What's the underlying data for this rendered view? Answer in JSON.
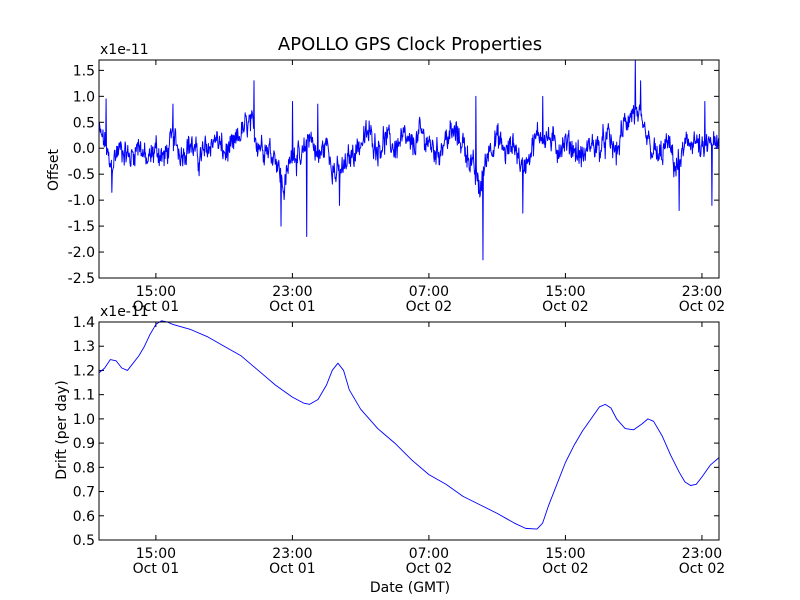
{
  "chart_data": [
    {
      "type": "line",
      "title": "APOLLO GPS Clock Properties",
      "xlabel": "",
      "ylabel": "Offset",
      "y_scale_label": "x1e-11",
      "xlim": [
        "Oct 01 11:40",
        "Oct 03 00:00"
      ],
      "ylim": [
        -2.5,
        1.7
      ],
      "xtick_labels": [
        {
          "time": "15:00",
          "date": "Oct 01"
        },
        {
          "time": "23:00",
          "date": "Oct 01"
        },
        {
          "time": "07:00",
          "date": "Oct 02"
        },
        {
          "time": "15:00",
          "date": "Oct 02"
        },
        {
          "time": "23:00",
          "date": "Oct 02"
        }
      ],
      "ytick_labels": [
        "-2.5",
        "-2.0",
        "-1.5",
        "-1.0",
        "-0.5",
        "0.0",
        "0.5",
        "1.0",
        "1.5"
      ],
      "grid": false,
      "color": "#0000ff",
      "series": [
        {
          "points": [
            [
              "Oct 01 11:40",
              0.3
            ],
            [
              "Oct 01 12:00",
              0.1
            ],
            [
              "Oct 01 12:20",
              -0.4
            ],
            [
              "Oct 01 12:40",
              -0.1
            ],
            [
              "Oct 01 13:00",
              0.0
            ],
            [
              "Oct 01 13:30",
              -0.2
            ],
            [
              "Oct 01 14:00",
              0.1
            ],
            [
              "Oct 01 14:30",
              -0.3
            ],
            [
              "Oct 01 15:00",
              0.0
            ],
            [
              "Oct 01 15:30",
              -0.2
            ],
            [
              "Oct 01 16:00",
              0.2
            ],
            [
              "Oct 01 16:30",
              -0.1
            ],
            [
              "Oct 01 17:00",
              0.1
            ],
            [
              "Oct 01 17:30",
              -0.2
            ],
            [
              "Oct 01 18:00",
              0.0
            ],
            [
              "Oct 01 18:30",
              0.2
            ],
            [
              "Oct 01 19:00",
              -0.1
            ],
            [
              "Oct 01 19:30",
              0.0
            ],
            [
              "Oct 01 20:00",
              0.3
            ],
            [
              "Oct 01 20:30",
              0.5
            ],
            [
              "Oct 01 21:00",
              0.1
            ],
            [
              "Oct 01 21:30",
              0.0
            ],
            [
              "Oct 01 22:00",
              -0.1
            ],
            [
              "Oct 01 22:30",
              -0.8
            ],
            [
              "Oct 01 23:00",
              0.0
            ],
            [
              "Oct 01 23:30",
              -0.3
            ],
            [
              "Oct 02 00:00",
              0.3
            ],
            [
              "Oct 02 00:30",
              -0.2
            ],
            [
              "Oct 02 01:00",
              0.1
            ],
            [
              "Oct 02 01:30",
              -0.5
            ],
            [
              "Oct 02 02:00",
              -0.4
            ],
            [
              "Oct 02 02:30",
              -0.1
            ],
            [
              "Oct 02 03:00",
              0.1
            ],
            [
              "Oct 02 03:30",
              0.3
            ],
            [
              "Oct 02 04:00",
              0.0
            ],
            [
              "Oct 02 04:30",
              0.2
            ],
            [
              "Oct 02 05:00",
              0.0
            ],
            [
              "Oct 02 05:30",
              0.2
            ],
            [
              "Oct 02 06:00",
              0.0
            ],
            [
              "Oct 02 06:30",
              0.3
            ],
            [
              "Oct 02 07:00",
              0.1
            ],
            [
              "Oct 02 07:30",
              -0.1
            ],
            [
              "Oct 02 08:00",
              0.2
            ],
            [
              "Oct 02 08:30",
              0.3
            ],
            [
              "Oct 02 09:00",
              0.1
            ],
            [
              "Oct 02 09:30",
              -0.3
            ],
            [
              "Oct 02 10:00",
              -0.8
            ],
            [
              "Oct 02 10:30",
              0.0
            ],
            [
              "Oct 02 11:00",
              0.2
            ],
            [
              "Oct 02 11:30",
              -0.1
            ],
            [
              "Oct 02 12:00",
              0.1
            ],
            [
              "Oct 02 12:30",
              -0.4
            ],
            [
              "Oct 02 13:00",
              0.0
            ],
            [
              "Oct 02 13:30",
              0.3
            ],
            [
              "Oct 02 14:00",
              0.2
            ],
            [
              "Oct 02 14:30",
              0.0
            ],
            [
              "Oct 02 15:00",
              0.1
            ],
            [
              "Oct 02 15:30",
              0.0
            ],
            [
              "Oct 02 16:00",
              -0.2
            ],
            [
              "Oct 02 16:30",
              0.1
            ],
            [
              "Oct 02 17:00",
              0.0
            ],
            [
              "Oct 02 17:30",
              0.2
            ],
            [
              "Oct 02 18:00",
              -0.1
            ],
            [
              "Oct 02 18:30",
              0.5
            ],
            [
              "Oct 02 19:00",
              0.7
            ],
            [
              "Oct 02 19:30",
              0.4
            ],
            [
              "Oct 02 20:00",
              0.0
            ],
            [
              "Oct 02 20:30",
              -0.2
            ],
            [
              "Oct 02 21:00",
              0.1
            ],
            [
              "Oct 02 21:30",
              -0.4
            ],
            [
              "Oct 02 22:00",
              0.0
            ],
            [
              "Oct 02 22:30",
              0.2
            ],
            [
              "Oct 02 23:00",
              -0.1
            ],
            [
              "Oct 02 23:30",
              0.1
            ],
            [
              "Oct 03 00:00",
              0.0
            ]
          ],
          "noise_amplitude": 0.35,
          "spikes": [
            [
              "Oct 01 12:05",
              0.95
            ],
            [
              "Oct 01 12:25",
              -0.85
            ],
            [
              "Oct 01 16:00",
              0.85
            ],
            [
              "Oct 01 20:45",
              1.3
            ],
            [
              "Oct 01 22:20",
              -1.5
            ],
            [
              "Oct 01 23:00",
              0.9
            ],
            [
              "Oct 01 23:50",
              -1.7
            ],
            [
              "Oct 02 00:30",
              0.85
            ],
            [
              "Oct 02 01:45",
              -1.1
            ],
            [
              "Oct 02 09:45",
              1.0
            ],
            [
              "Oct 02 10:10",
              -2.15
            ],
            [
              "Oct 02 12:30",
              -1.25
            ],
            [
              "Oct 02 13:40",
              1.0
            ],
            [
              "Oct 02 19:05",
              1.7
            ],
            [
              "Oct 02 19:25",
              1.3
            ],
            [
              "Oct 02 21:40",
              -1.2
            ],
            [
              "Oct 02 23:10",
              0.9
            ],
            [
              "Oct 02 23:35",
              -1.1
            ]
          ]
        }
      ]
    },
    {
      "type": "line",
      "title": "",
      "xlabel": "Date (GMT)",
      "ylabel": "Drift (per day)",
      "y_scale_label": "x1e-11",
      "xlim": [
        "Oct 01 11:40",
        "Oct 03 00:00"
      ],
      "ylim": [
        0.5,
        1.4
      ],
      "xtick_labels": [
        {
          "time": "15:00",
          "date": "Oct 01"
        },
        {
          "time": "23:00",
          "date": "Oct 01"
        },
        {
          "time": "07:00",
          "date": "Oct 02"
        },
        {
          "time": "15:00",
          "date": "Oct 02"
        },
        {
          "time": "23:00",
          "date": "Oct 02"
        }
      ],
      "ytick_labels": [
        "0.5",
        "0.6",
        "0.7",
        "0.8",
        "0.9",
        "1.0",
        "1.1",
        "1.2",
        "1.3",
        "1.4"
      ],
      "grid": false,
      "color": "#0000ff",
      "series": [
        {
          "points": [
            [
              "Oct 01 11:40",
              1.19
            ],
            [
              "Oct 01 12:00",
              1.21
            ],
            [
              "Oct 01 12:20",
              1.245
            ],
            [
              "Oct 01 12:40",
              1.24
            ],
            [
              "Oct 01 13:00",
              1.21
            ],
            [
              "Oct 01 13:20",
              1.2
            ],
            [
              "Oct 01 13:40",
              1.23
            ],
            [
              "Oct 01 14:00",
              1.26
            ],
            [
              "Oct 01 14:20",
              1.3
            ],
            [
              "Oct 01 14:40",
              1.35
            ],
            [
              "Oct 01 15:00",
              1.39
            ],
            [
              "Oct 01 15:20",
              1.405
            ],
            [
              "Oct 01 15:40",
              1.4
            ],
            [
              "Oct 01 16:00",
              1.39
            ],
            [
              "Oct 01 17:00",
              1.37
            ],
            [
              "Oct 01 18:00",
              1.34
            ],
            [
              "Oct 01 19:00",
              1.3
            ],
            [
              "Oct 01 20:00",
              1.26
            ],
            [
              "Oct 01 21:00",
              1.2
            ],
            [
              "Oct 01 22:00",
              1.14
            ],
            [
              "Oct 01 23:00",
              1.09
            ],
            [
              "Oct 01 23:40",
              1.065
            ],
            [
              "Oct 02 00:00",
              1.06
            ],
            [
              "Oct 02 00:30",
              1.08
            ],
            [
              "Oct 02 01:00",
              1.14
            ],
            [
              "Oct 02 01:20",
              1.2
            ],
            [
              "Oct 02 01:40",
              1.23
            ],
            [
              "Oct 02 02:00",
              1.2
            ],
            [
              "Oct 02 02:20",
              1.12
            ],
            [
              "Oct 02 03:00",
              1.04
            ],
            [
              "Oct 02 04:00",
              0.96
            ],
            [
              "Oct 02 05:00",
              0.9
            ],
            [
              "Oct 02 06:00",
              0.83
            ],
            [
              "Oct 02 07:00",
              0.77
            ],
            [
              "Oct 02 08:00",
              0.73
            ],
            [
              "Oct 02 09:00",
              0.68
            ],
            [
              "Oct 02 10:00",
              0.645
            ],
            [
              "Oct 02 11:00",
              0.61
            ],
            [
              "Oct 02 12:00",
              0.57
            ],
            [
              "Oct 02 12:40",
              0.548
            ],
            [
              "Oct 02 13:20",
              0.545
            ],
            [
              "Oct 02 13:40",
              0.57
            ],
            [
              "Oct 02 14:00",
              0.64
            ],
            [
              "Oct 02 14:30",
              0.73
            ],
            [
              "Oct 02 15:00",
              0.82
            ],
            [
              "Oct 02 15:30",
              0.89
            ],
            [
              "Oct 02 16:00",
              0.95
            ],
            [
              "Oct 02 16:30",
              1.0
            ],
            [
              "Oct 02 17:00",
              1.05
            ],
            [
              "Oct 02 17:20",
              1.06
            ],
            [
              "Oct 02 17:40",
              1.045
            ],
            [
              "Oct 02 18:00",
              1.0
            ],
            [
              "Oct 02 18:30",
              0.96
            ],
            [
              "Oct 02 19:00",
              0.955
            ],
            [
              "Oct 02 19:30",
              0.98
            ],
            [
              "Oct 02 19:50",
              1.0
            ],
            [
              "Oct 02 20:10",
              0.99
            ],
            [
              "Oct 02 20:40",
              0.93
            ],
            [
              "Oct 02 21:10",
              0.85
            ],
            [
              "Oct 02 21:40",
              0.78
            ],
            [
              "Oct 02 22:00",
              0.74
            ],
            [
              "Oct 02 22:20",
              0.725
            ],
            [
              "Oct 02 22:40",
              0.73
            ],
            [
              "Oct 02 23:00",
              0.76
            ],
            [
              "Oct 02 23:30",
              0.81
            ],
            [
              "Oct 03 00:00",
              0.84
            ]
          ]
        }
      ]
    }
  ]
}
